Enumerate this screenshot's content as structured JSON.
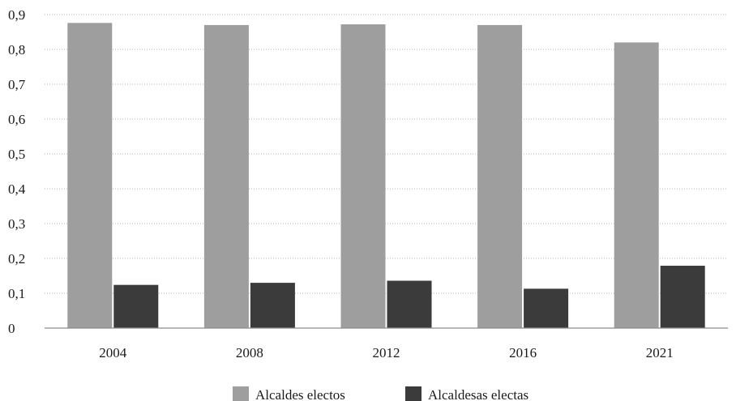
{
  "chart_data": {
    "type": "bar",
    "categories": [
      "2004",
      "2008",
      "2012",
      "2016",
      "2021"
    ],
    "series": [
      {
        "name": "Alcaldes electos",
        "color": "#9e9e9e",
        "values": [
          0.876,
          0.87,
          0.872,
          0.87,
          0.82
        ]
      },
      {
        "name": "Alcaldesas electas",
        "color": "#3b3b3b",
        "values": [
          0.124,
          0.13,
          0.136,
          0.113,
          0.179
        ]
      }
    ],
    "title": "",
    "xlabel": "",
    "ylabel": "",
    "ylim": [
      0,
      0.9
    ],
    "yticks": [
      "0",
      "0,1",
      "0,2",
      "0,3",
      "0,4",
      "0,5",
      "0,6",
      "0,7",
      "0,8",
      "0,9"
    ],
    "grid": true,
    "legend_position": "bottom"
  }
}
